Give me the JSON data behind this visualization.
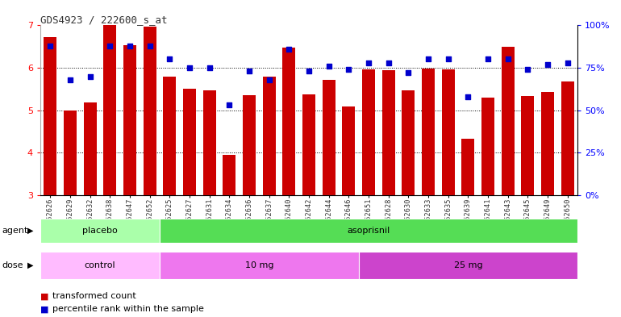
{
  "title": "GDS4923 / 222600_s_at",
  "samples": [
    "GSM1152626",
    "GSM1152629",
    "GSM1152632",
    "GSM1152638",
    "GSM1152647",
    "GSM1152652",
    "GSM1152625",
    "GSM1152627",
    "GSM1152631",
    "GSM1152634",
    "GSM1152636",
    "GSM1152637",
    "GSM1152640",
    "GSM1152642",
    "GSM1152644",
    "GSM1152646",
    "GSM1152651",
    "GSM1152628",
    "GSM1152630",
    "GSM1152633",
    "GSM1152635",
    "GSM1152639",
    "GSM1152641",
    "GSM1152643",
    "GSM1152645",
    "GSM1152649",
    "GSM1152650"
  ],
  "bar_values": [
    6.72,
    4.99,
    5.19,
    7.02,
    6.54,
    6.97,
    5.79,
    5.51,
    5.47,
    3.94,
    5.35,
    5.79,
    6.47,
    5.37,
    5.71,
    5.09,
    5.97,
    5.95,
    5.46,
    5.98,
    5.96,
    4.32,
    5.3,
    6.49,
    5.34,
    5.42,
    5.68
  ],
  "percentile_values": [
    88,
    68,
    70,
    88,
    88,
    88,
    80,
    75,
    75,
    53,
    73,
    68,
    86,
    73,
    76,
    74,
    78,
    78,
    72,
    80,
    80,
    58,
    80,
    80,
    74,
    77,
    78
  ],
  "bar_color": "#cc0000",
  "dot_color": "#0000cc",
  "y_min": 3,
  "y_max": 7,
  "y_ticks": [
    3,
    4,
    5,
    6,
    7
  ],
  "right_y_ticks": [
    0,
    25,
    50,
    75,
    100
  ],
  "right_y_labels": [
    "0%",
    "25%",
    "50%",
    "75%",
    "100%"
  ],
  "agent_groups": [
    {
      "label": "placebo",
      "start": 0,
      "end": 6,
      "color": "#aaffaa"
    },
    {
      "label": "asoprisnil",
      "start": 6,
      "end": 27,
      "color": "#55dd55"
    }
  ],
  "dose_groups": [
    {
      "label": "control",
      "start": 0,
      "end": 6,
      "color": "#ffbbff"
    },
    {
      "label": "10 mg",
      "start": 6,
      "end": 16,
      "color": "#ee77ee"
    },
    {
      "label": "25 mg",
      "start": 16,
      "end": 27,
      "color": "#cc44cc"
    }
  ],
  "legend_items": [
    {
      "label": "transformed count",
      "color": "#cc0000"
    },
    {
      "label": "percentile rank within the sample",
      "color": "#0000cc"
    }
  ],
  "bg_color": "#ffffff",
  "plot_bg_color": "#ffffff",
  "grid_color": "#000000"
}
